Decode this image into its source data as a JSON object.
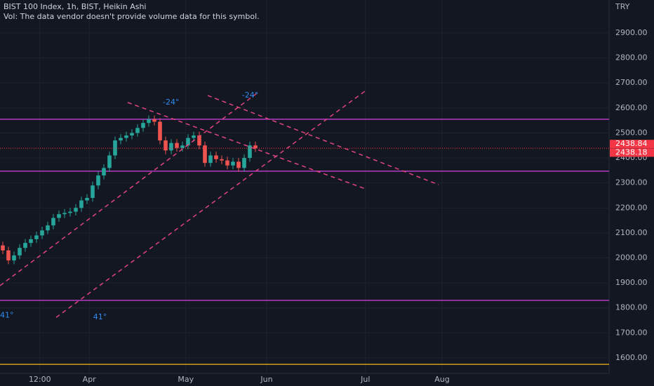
{
  "chart_data": {
    "type": "candlestick",
    "title": "BIST 100 Index, 1h, BIST, Heikin Ashi",
    "subtitle": "Vol: The data vendor doesn't provide volume data for this symbol.",
    "currency": "TRY",
    "up_color": "#26a69a",
    "down_color": "#ef5350",
    "open": [
      2050,
      2030,
      1990,
      2010,
      2040,
      2060,
      2075,
      2090,
      2110,
      2130,
      2160,
      2175,
      2180,
      2185,
      2200,
      2230,
      2240,
      2290,
      2330,
      2360,
      2410,
      2470,
      2480,
      2490,
      2500,
      2520,
      2540,
      2555,
      2545,
      2470,
      2430,
      2460,
      2440,
      2450,
      2480,
      2490,
      2450,
      2380,
      2410,
      2395,
      2390,
      2370,
      2385,
      2360,
      2400,
      2450
    ],
    "high": [
      2065,
      2045,
      2025,
      2055,
      2075,
      2090,
      2105,
      2125,
      2145,
      2175,
      2190,
      2195,
      2200,
      2215,
      2245,
      2255,
      2305,
      2345,
      2375,
      2425,
      2485,
      2495,
      2505,
      2515,
      2535,
      2555,
      2570,
      2570,
      2560,
      2485,
      2475,
      2475,
      2465,
      2495,
      2505,
      2505,
      2465,
      2425,
      2425,
      2410,
      2405,
      2400,
      2400,
      2415,
      2465,
      2465
    ],
    "low": [
      2015,
      1975,
      1975,
      1995,
      2025,
      2045,
      2060,
      2075,
      2095,
      2115,
      2145,
      2160,
      2165,
      2170,
      2185,
      2215,
      2225,
      2275,
      2315,
      2345,
      2395,
      2455,
      2465,
      2475,
      2485,
      2505,
      2525,
      2530,
      2455,
      2415,
      2415,
      2425,
      2425,
      2435,
      2465,
      2435,
      2365,
      2365,
      2380,
      2375,
      2355,
      2355,
      2345,
      2345,
      2385,
      2424
    ],
    "close": [
      2030,
      1990,
      2010,
      2040,
      2060,
      2075,
      2090,
      2110,
      2130,
      2160,
      2175,
      2180,
      2185,
      2200,
      2230,
      2240,
      2290,
      2330,
      2360,
      2410,
      2470,
      2480,
      2490,
      2500,
      2520,
      2540,
      2555,
      2545,
      2470,
      2430,
      2460,
      2440,
      2450,
      2480,
      2490,
      2450,
      2380,
      2410,
      2395,
      2390,
      2370,
      2385,
      2360,
      2400,
      2450,
      2439
    ],
    "xlim": [
      -0.5,
      108
    ],
    "xticks": [
      {
        "value": 6.6,
        "label": "12:00"
      },
      {
        "value": 15.4,
        "label": "Apr"
      },
      {
        "value": 32.6,
        "label": "May"
      },
      {
        "value": 47,
        "label": "Jun"
      },
      {
        "value": 64.6,
        "label": "Jul"
      },
      {
        "value": 78.25,
        "label": "Aug"
      }
    ],
    "ylim": [
      1538,
      3032
    ],
    "yticks": [
      {
        "value": 1600,
        "label": "1600.00"
      },
      {
        "value": 1700,
        "label": "1700.00"
      },
      {
        "value": 1800,
        "label": "1800.00"
      },
      {
        "value": 1900,
        "label": "1900.00"
      },
      {
        "value": 2000,
        "label": "2000.00"
      },
      {
        "value": 2100,
        "label": "2100.00"
      },
      {
        "value": 2200,
        "label": "2200.00"
      },
      {
        "value": 2300,
        "label": "2300.00"
      },
      {
        "value": 2400,
        "label": "2400.00"
      },
      {
        "value": 2500,
        "label": "2500.00"
      },
      {
        "value": 2600,
        "label": "2600.00"
      },
      {
        "value": 2700,
        "label": "2700.00"
      },
      {
        "value": 2800,
        "label": "2800.00"
      },
      {
        "value": 2900,
        "label": "2900.00"
      }
    ],
    "grid": true,
    "price_labels": [
      2438.84,
      2438.18
    ],
    "price_label_color": "#f23645",
    "hlines": [
      {
        "value": 2555,
        "color": "#b43cc6"
      },
      {
        "value": 2347,
        "color": "#b43cc6"
      },
      {
        "value": 1830,
        "color": "#b43cc6"
      },
      {
        "value": 1574,
        "color": "#d4a017"
      }
    ],
    "trendline_color": "#e2457c",
    "trendlines": [
      {
        "x": [
          -0.5,
          45.75
        ],
        "y": [
          1889,
          2667
        ]
      },
      {
        "x": [
          9.5,
          64.5
        ],
        "y": [
          1762,
          2667
        ]
      },
      {
        "x": [
          22.25,
          64.875
        ],
        "y": [
          2622,
          2274
        ]
      },
      {
        "x": [
          36.5,
          77.625
        ],
        "y": [
          2650,
          2293
        ]
      }
    ],
    "annotation_color": "#2f8cf0",
    "annotations": [
      {
        "text": "-24°",
        "x": 28.5,
        "y": 2622
      },
      {
        "text": "-24°",
        "x": 42.6,
        "y": 2650
      },
      {
        "text": "41°",
        "x": -0.5,
        "y": 1770
      },
      {
        "text": "41°",
        "x": 16.1,
        "y": 1762
      }
    ]
  }
}
